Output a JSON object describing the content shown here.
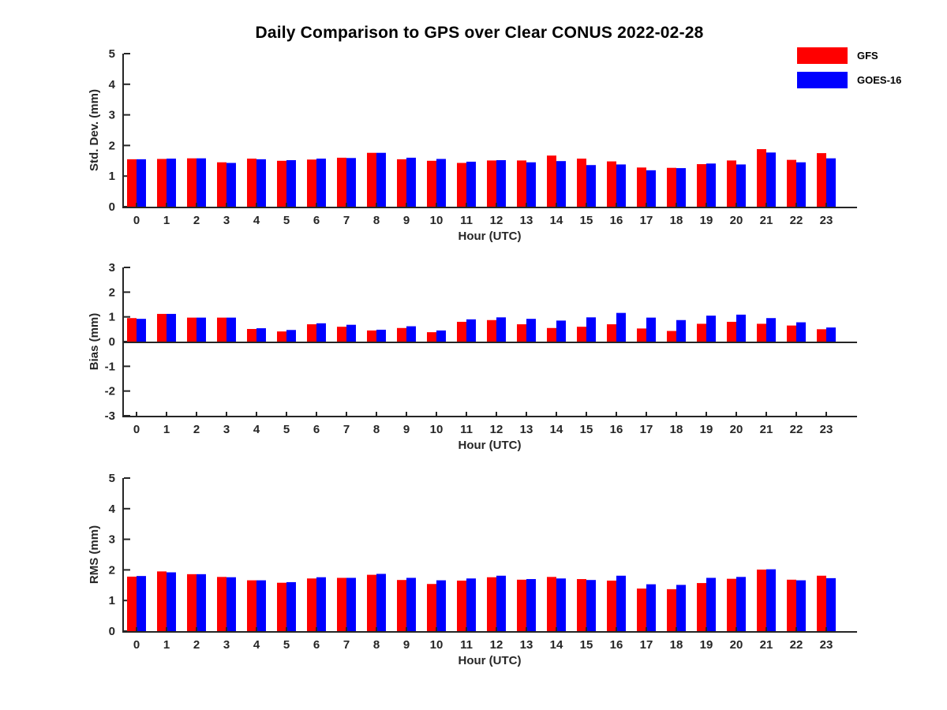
{
  "title": "Daily Comparison to GPS over Clear CONUS 2022-02-28",
  "legend": {
    "items": [
      {
        "label": "GFS",
        "color": "#ff0000"
      },
      {
        "label": "GOES-16",
        "color": "#0000ff"
      }
    ]
  },
  "colors": {
    "gfs": "#ff0000",
    "goes16": "#0000ff",
    "axis": "#262626",
    "title": "#000000"
  },
  "chart_data": [
    {
      "type": "bar",
      "panel": "std-dev",
      "ylabel": "Std. Dev. (mm)",
      "xlabel": "Hour (UTC)",
      "ylim": [
        0,
        5
      ],
      "yticks": [
        0,
        1,
        2,
        3,
        4,
        5
      ],
      "grid": false,
      "legend_position": "top-right",
      "categories": [
        "0",
        "1",
        "2",
        "3",
        "4",
        "5",
        "6",
        "7",
        "8",
        "9",
        "10",
        "11",
        "12",
        "13",
        "14",
        "15",
        "16",
        "17",
        "18",
        "19",
        "20",
        "21",
        "22",
        "23"
      ],
      "series": [
        {
          "name": "GFS",
          "values": [
            1.55,
            1.56,
            1.58,
            1.45,
            1.57,
            1.5,
            1.54,
            1.6,
            1.76,
            1.55,
            1.5,
            1.43,
            1.51,
            1.51,
            1.67,
            1.57,
            1.48,
            1.28,
            1.27,
            1.39,
            1.51,
            1.88,
            1.53,
            1.75
          ]
        },
        {
          "name": "GOES-16",
          "values": [
            1.55,
            1.57,
            1.58,
            1.43,
            1.55,
            1.52,
            1.57,
            1.59,
            1.76,
            1.6,
            1.56,
            1.47,
            1.52,
            1.45,
            1.49,
            1.36,
            1.38,
            1.19,
            1.26,
            1.41,
            1.38,
            1.77,
            1.45,
            1.58
          ]
        }
      ]
    },
    {
      "type": "bar",
      "panel": "bias",
      "ylabel": "Bias (mm)",
      "xlabel": "Hour (UTC)",
      "ylim": [
        -3,
        3
      ],
      "yticks": [
        -3,
        -2,
        -1,
        0,
        1,
        2,
        3
      ],
      "grid": false,
      "categories": [
        "0",
        "1",
        "2",
        "3",
        "4",
        "5",
        "6",
        "7",
        "8",
        "9",
        "10",
        "11",
        "12",
        "13",
        "14",
        "15",
        "16",
        "17",
        "18",
        "19",
        "20",
        "21",
        "22",
        "23"
      ],
      "series": [
        {
          "name": "GFS",
          "values": [
            0.95,
            1.12,
            0.97,
            0.97,
            0.51,
            0.41,
            0.7,
            0.6,
            0.45,
            0.55,
            0.38,
            0.8,
            0.87,
            0.7,
            0.55,
            0.6,
            0.7,
            0.53,
            0.43,
            0.72,
            0.8,
            0.72,
            0.65,
            0.5
          ]
        },
        {
          "name": "GOES-16",
          "values": [
            0.92,
            1.12,
            0.97,
            0.97,
            0.54,
            0.47,
            0.74,
            0.68,
            0.48,
            0.62,
            0.45,
            0.9,
            0.98,
            0.92,
            0.85,
            0.98,
            1.16,
            0.97,
            0.87,
            1.05,
            1.09,
            0.95,
            0.78,
            0.57
          ]
        }
      ]
    },
    {
      "type": "bar",
      "panel": "rms",
      "ylabel": "RMS (mm)",
      "xlabel": "Hour (UTC)",
      "ylim": [
        0,
        5
      ],
      "yticks": [
        0,
        1,
        2,
        3,
        4,
        5
      ],
      "grid": false,
      "categories": [
        "0",
        "1",
        "2",
        "3",
        "4",
        "5",
        "6",
        "7",
        "8",
        "9",
        "10",
        "11",
        "12",
        "13",
        "14",
        "15",
        "16",
        "17",
        "18",
        "19",
        "20",
        "21",
        "22",
        "23"
      ],
      "series": [
        {
          "name": "GFS",
          "values": [
            1.78,
            1.95,
            1.86,
            1.77,
            1.66,
            1.58,
            1.72,
            1.74,
            1.84,
            1.67,
            1.54,
            1.65,
            1.76,
            1.68,
            1.77,
            1.7,
            1.65,
            1.39,
            1.37,
            1.57,
            1.71,
            2.01,
            1.68,
            1.81
          ]
        },
        {
          "name": "GOES-16",
          "values": [
            1.8,
            1.92,
            1.86,
            1.76,
            1.66,
            1.6,
            1.76,
            1.74,
            1.87,
            1.74,
            1.66,
            1.72,
            1.81,
            1.7,
            1.72,
            1.67,
            1.81,
            1.53,
            1.51,
            1.74,
            1.77,
            2.02,
            1.66,
            1.73
          ]
        }
      ]
    }
  ]
}
